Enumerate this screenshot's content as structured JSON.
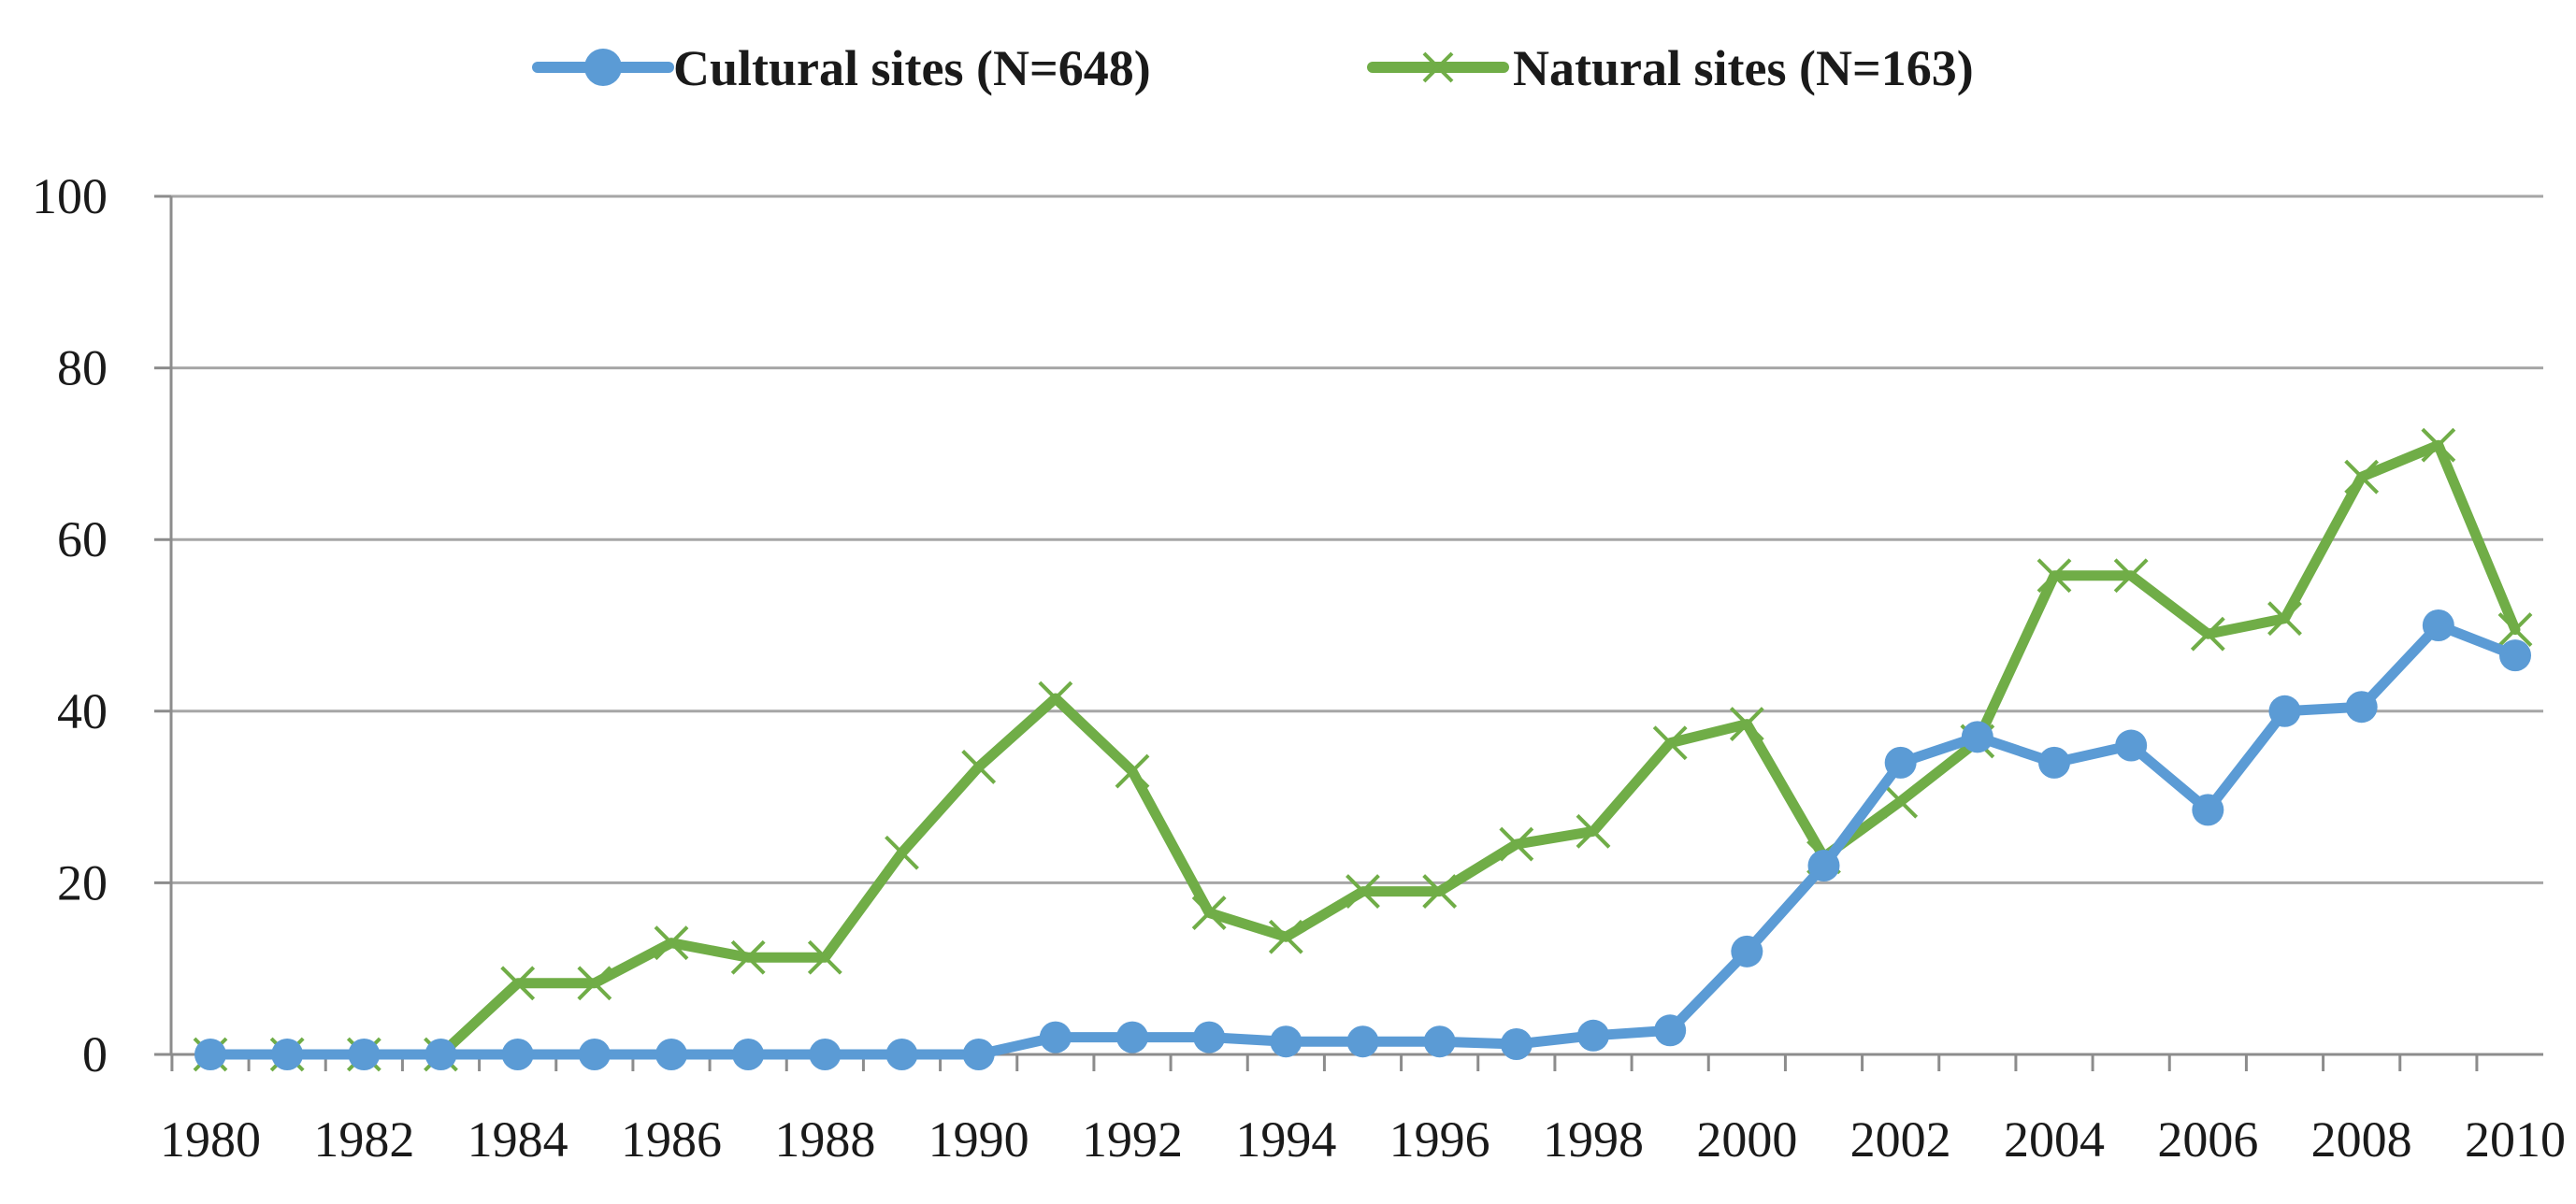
{
  "chart_data": {
    "type": "line",
    "title": "",
    "xlabel": "",
    "ylabel": "",
    "x": [
      1980,
      1981,
      1982,
      1983,
      1984,
      1985,
      1986,
      1987,
      1988,
      1989,
      1990,
      1991,
      1992,
      1993,
      1994,
      1995,
      1996,
      1997,
      1998,
      1999,
      2000,
      2001,
      2002,
      2003,
      2004,
      2005,
      2006,
      2007,
      2008,
      2009,
      2010
    ],
    "x_tick_labels": [
      "1980",
      "1982",
      "1984",
      "1986",
      "1988",
      "1990",
      "1992",
      "1994",
      "1996",
      "1998",
      "2000",
      "2002",
      "2004",
      "2006",
      "2008",
      "2010"
    ],
    "y_tick_labels": [
      "0",
      "20",
      "40",
      "60",
      "80",
      "100"
    ],
    "ylim": [
      0,
      100
    ],
    "grid": true,
    "legend_position": "top",
    "series": [
      {
        "name": "Cultural sites (N=648)",
        "color": "#5b9bd5",
        "marker": "circle",
        "values": [
          0,
          0,
          0,
          0,
          0,
          0,
          0,
          0,
          0,
          0,
          0,
          2,
          2,
          2,
          1.5,
          1.5,
          1.5,
          1.2,
          2.2,
          2.8,
          12,
          22,
          34,
          37,
          34,
          36,
          28.5,
          40,
          40.5,
          50,
          46.5
        ]
      },
      {
        "name": "Natural sites (N=163)",
        "color": "#70ad47",
        "marker": "x",
        "values": [
          0,
          0,
          0,
          0,
          8.3,
          8.3,
          13,
          11.3,
          11.3,
          23.5,
          33.5,
          41.5,
          33,
          16.5,
          13.7,
          19,
          19,
          24.5,
          26,
          36.3,
          38.5,
          23,
          29.5,
          36.5,
          55.8,
          55.8,
          49,
          50.8,
          67.3,
          71,
          49.5
        ]
      }
    ]
  }
}
